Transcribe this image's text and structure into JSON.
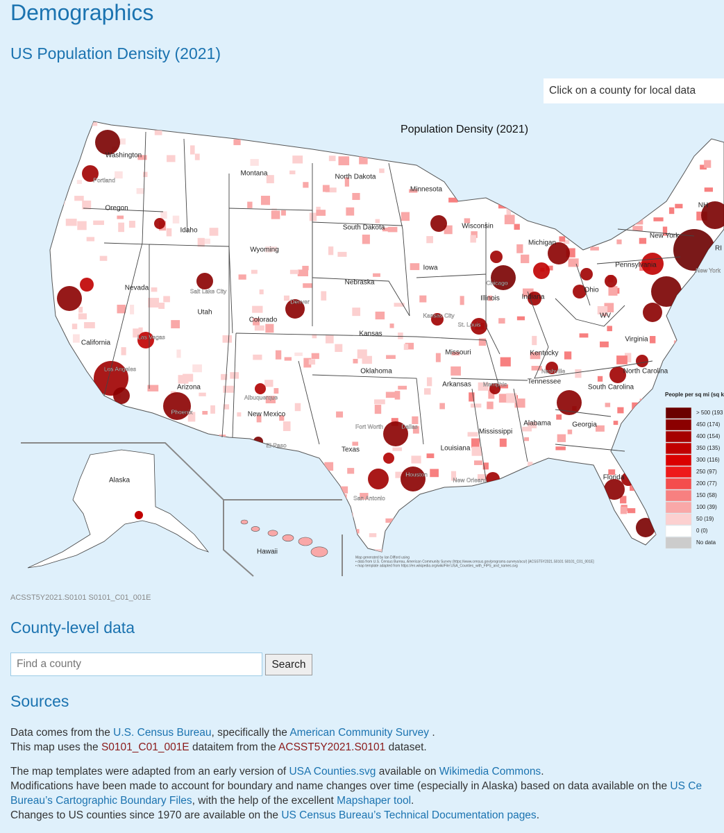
{
  "header": {
    "title": "Demographics",
    "subtitle": "US Population Density (2021)",
    "hint": "Click on a county for local data"
  },
  "map": {
    "title": "Population Density (2021)",
    "state_labels": [
      "Washington",
      "Oregon",
      "California",
      "Nevada",
      "Idaho",
      "Montana",
      "Wyoming",
      "Utah",
      "Arizona",
      "Colorado",
      "New Mexico",
      "North Dakota",
      "South Dakota",
      "Nebraska",
      "Kansas",
      "Oklahoma",
      "Texas",
      "Minnesota",
      "Iowa",
      "Missouri",
      "Arkansas",
      "Louisiana",
      "Mississippi",
      "Alabama",
      "Tennessee",
      "Kentucky",
      "Illinois",
      "Wisconsin",
      "Michigan",
      "Indiana",
      "Ohio",
      "Pennsylvania",
      "New York",
      "Virginia",
      "WV",
      "North Carolina",
      "South Carolina",
      "Georgia",
      "Florida",
      "NH",
      "RI",
      "Alaska",
      "Hawaii"
    ],
    "city_labels": [
      "Portland",
      "Los Angeles",
      "Las Vegas",
      "Phoenix",
      "Salt Lake City",
      "Denver",
      "Albuquerque",
      "El Paso",
      "Kansas City",
      "St. Louis",
      "Chicago",
      "Dallas",
      "Fort Worth",
      "San Antonio",
      "Houston",
      "New Orleans",
      "Memphis",
      "Nashville",
      "New York"
    ],
    "legend": {
      "title": "People per sq mi (sq km)",
      "items": [
        {
          "label": "> 500 (193",
          "color": "#6b0000"
        },
        {
          "label": "450 (174)",
          "color": "#8b0000"
        },
        {
          "label": "400 (154)",
          "color": "#a50000"
        },
        {
          "label": "350 (135)",
          "color": "#c00000"
        },
        {
          "label": "300 (116)",
          "color": "#da0000"
        },
        {
          "label": "250 (97)",
          "color": "#ee1a1a"
        },
        {
          "label": "200 (77)",
          "color": "#f44d4d"
        },
        {
          "label": "150 (58)",
          "color": "#f78080"
        },
        {
          "label": "100 (39)",
          "color": "#f9a8a8"
        },
        {
          "label": "50 (19)",
          "color": "#fcd0d0"
        },
        {
          "label": "0 (0)",
          "color": "#ffffff"
        },
        {
          "label": "No data",
          "color": "#cccccc"
        }
      ]
    },
    "credit": [
      "Map generated by Ian Difford using",
      "• data from U.S. Census Bureau, American Community Survey (https://www.census.gov/programs-surveys/acs/) [ACSST5Y2021.S0101 S0101_C01_001E]",
      "• map template adapted from https://en.wikipedia.org/wiki/File:USA_Counties_with_FIPS_and_names.svg"
    ]
  },
  "dataset_id": "ACSST5Y2021.S0101 S0101_C01_001E",
  "county": {
    "heading": "County-level data",
    "placeholder": "Find a county",
    "button": "Search"
  },
  "sources": {
    "heading": "Sources",
    "paragraphs": [
      [
        [
          {
            "text": "Data comes from the ",
            "style": "plain"
          },
          {
            "text": "U.S. Census Bureau",
            "style": "link"
          },
          {
            "text": ", specifically the ",
            "style": "plain"
          },
          {
            "text": "American Community Survey",
            "style": "link"
          },
          {
            "text": " .",
            "style": "plain"
          }
        ],
        [
          {
            "text": "This map uses the ",
            "style": "plain"
          },
          {
            "text": "S0101_C01_001E",
            "style": "code-link"
          },
          {
            "text": " dataitem from the ",
            "style": "plain"
          },
          {
            "text": "ACSST5Y2021.S0101",
            "style": "code-link"
          },
          {
            "text": " dataset.",
            "style": "plain"
          }
        ]
      ],
      [
        [
          {
            "text": "The map templates were adapted from an early version of ",
            "style": "plain"
          },
          {
            "text": "USA Counties.svg",
            "style": "link"
          },
          {
            "text": " available on ",
            "style": "plain"
          },
          {
            "text": "Wikimedia Commons",
            "style": "link"
          },
          {
            "text": ".",
            "style": "plain"
          }
        ],
        [
          {
            "text": "Modifications have been made to account for boundary and name changes over time (especially in Alaska) based on data available on the ",
            "style": "plain"
          },
          {
            "text": "US Ce",
            "style": "link"
          }
        ],
        [
          {
            "text": "Bureau’s Cartographic Boundary Files",
            "style": "link"
          },
          {
            "text": ", with the help of the excellent ",
            "style": "plain"
          },
          {
            "text": "Mapshaper tool",
            "style": "link"
          },
          {
            "text": ".",
            "style": "plain"
          }
        ],
        [
          {
            "text": "Changes to US counties since 1970 are available on the ",
            "style": "plain"
          },
          {
            "text": "US Census Bureau’s Technical Documentation pages",
            "style": "link"
          },
          {
            "text": ".",
            "style": "plain"
          }
        ]
      ]
    ]
  }
}
